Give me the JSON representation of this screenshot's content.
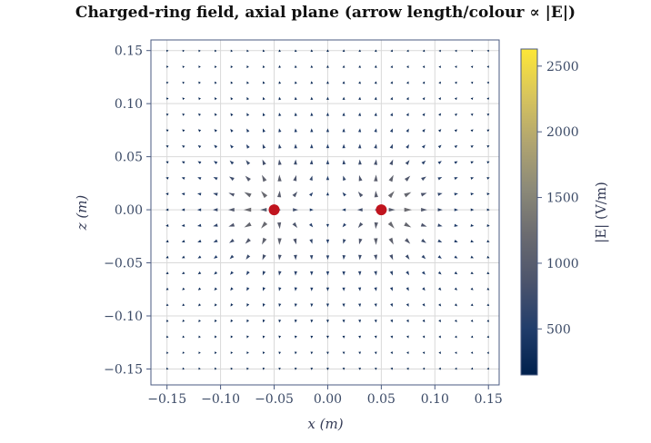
{
  "chart_data": {
    "type": "quiver",
    "title": "Charged-ring field, axial plane (arrow length/colour ∝ |E|)",
    "xlabel": "x (m)",
    "ylabel": "z (m)",
    "xlim": [
      -0.165,
      0.16
    ],
    "ylim": [
      -0.165,
      0.16
    ],
    "xticks": [
      -0.15,
      -0.1,
      -0.05,
      0.0,
      0.05,
      0.1,
      0.15
    ],
    "xtick_labels": [
      "−0.15",
      "−0.10",
      "−0.05",
      "0.00",
      "0.05",
      "0.10",
      "0.15"
    ],
    "yticks": [
      -0.15,
      -0.1,
      -0.05,
      0.0,
      0.05,
      0.1,
      0.15
    ],
    "ytick_labels": [
      "−0.15",
      "−0.10",
      "−0.05",
      "0.00",
      "0.05",
      "0.10",
      "0.15"
    ],
    "grid": true,
    "charges": [
      {
        "x": -0.05,
        "z": 0.0
      },
      {
        "x": 0.05,
        "z": 0.0
      }
    ],
    "field_grid": {
      "x_start": -0.15,
      "x_end": 0.15,
      "z_start": -0.15,
      "z_end": 0.15,
      "n": 21
    },
    "colorbar": {
      "label": "|E| (V/m)",
      "min": 150,
      "max": 2630,
      "ticks": [
        500,
        1000,
        1500,
        2000,
        2500
      ],
      "tick_labels": [
        "500",
        "1000",
        "1500",
        "2000",
        "2500"
      ],
      "colormap": [
        "#00204c",
        "#213d6b",
        "#4c546c",
        "#6b6b70",
        "#8c8a78",
        "#b1a570",
        "#d8c55c",
        "#fde737"
      ]
    },
    "charge_color": "#c0141e",
    "arrow_scale_max": 2630
  }
}
